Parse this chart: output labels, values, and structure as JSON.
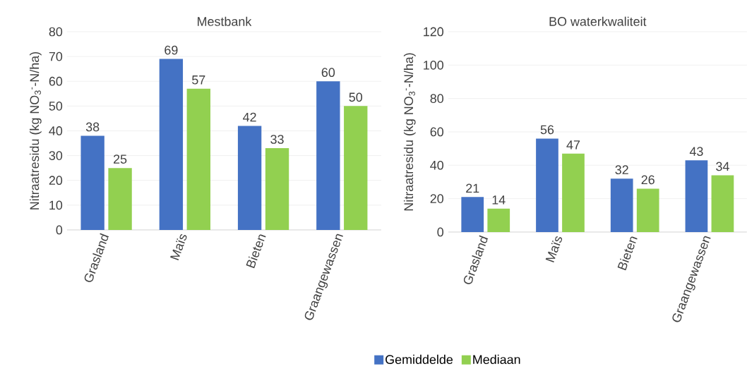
{
  "chart_data": [
    {
      "type": "bar",
      "title": "Mestbank",
      "ylabel": "Nitraatresidu (kg NO$_{3}$$^{-}$-N/ha)",
      "categories": [
        "Grasland",
        "Maïs",
        "Bieten",
        "Graangewassen"
      ],
      "series": [
        {
          "color": "#4472c4",
          "values": [
            38,
            69,
            42,
            60
          ]
        },
        {
          "color": "#92d050",
          "values": [
            25,
            57,
            33,
            50
          ]
        }
      ],
      "ylim": [
        0,
        80
      ],
      "yticks": [
        0,
        10,
        20,
        30,
        40,
        50,
        60,
        70,
        80
      ],
      "grid": "y",
      "data_labels": true
    },
    {
      "type": "bar",
      "title": "BO waterkwaliteit",
      "ylabel": "Nitraatresidu (kg NO$_{3}$$^{-}$-N/ha)",
      "categories": [
        "Grasland",
        "Maïs",
        "Bieten",
        "Graangewassen"
      ],
      "series": [
        {
          "name": "Gemiddelde",
          "color": "#4472c4",
          "values": [
            21,
            56,
            32,
            43
          ]
        },
        {
          "name": "Mediaan",
          "color": "#92d050",
          "values": [
            14,
            47,
            26,
            34
          ]
        }
      ],
      "ylim": [
        0,
        120
      ],
      "yticks": [
        0,
        20,
        40,
        60,
        80,
        100,
        120
      ],
      "grid": "y",
      "data_labels": true,
      "legend": "bottom"
    }
  ]
}
